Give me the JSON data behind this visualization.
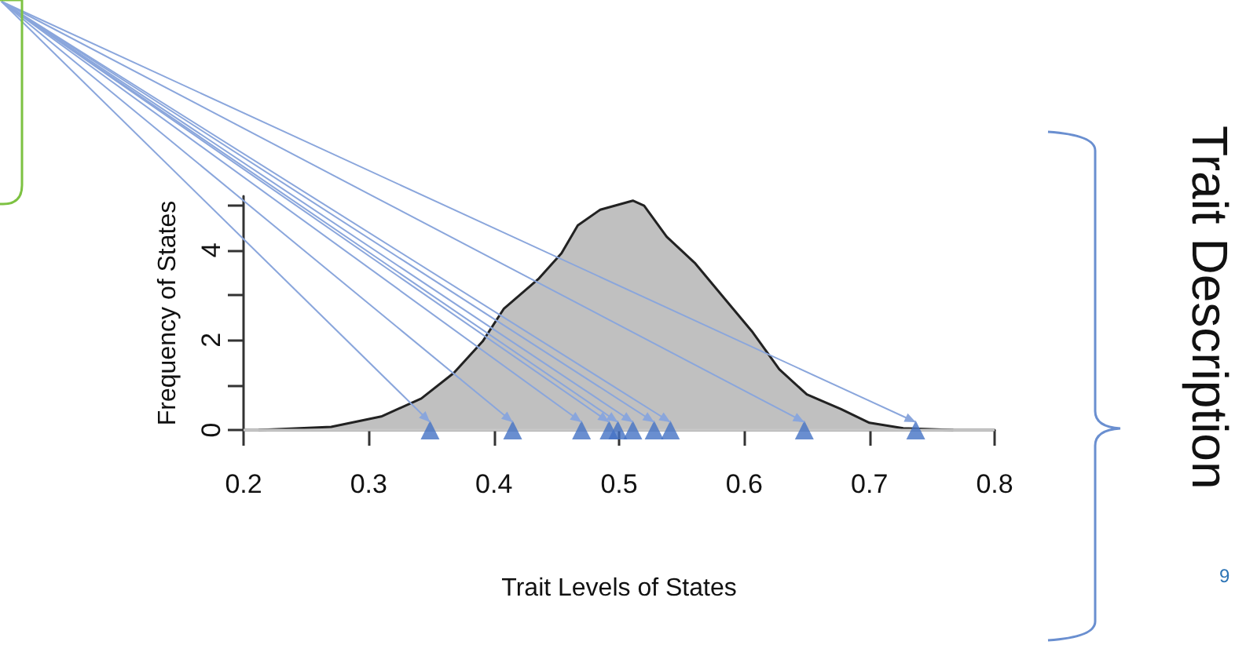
{
  "chart_data": {
    "type": "area",
    "xlabel": "Trait Levels of States",
    "ylabel": "Frequency of States",
    "xlim": [
      0.2,
      0.8
    ],
    "xticks": [
      0.2,
      0.3,
      0.4,
      0.5,
      0.6,
      0.7,
      0.8
    ],
    "ylim": [
      0,
      5.2
    ],
    "yticks": [
      0,
      {
        "value": 1,
        "label": null
      },
      2,
      {
        "value": 3,
        "label": null
      },
      4,
      {
        "value": 5,
        "label": null
      }
    ],
    "series": [
      {
        "color": "#c0c0c0",
        "marker": "none",
        "x": [
          0.212,
          0.27,
          0.31,
          0.342,
          0.368,
          0.391,
          0.408,
          0.436,
          0.454,
          0.467,
          0.485,
          0.511,
          0.52,
          0.538,
          0.561,
          0.587,
          0.606,
          0.628,
          0.65,
          0.677,
          0.7,
          0.727,
          0.767
        ],
        "values": [
          0,
          0.07,
          0.3,
          0.7,
          1.27,
          1.97,
          2.7,
          3.37,
          3.93,
          4.55,
          4.9,
          5.1,
          4.99,
          4.3,
          3.7,
          2.83,
          2.2,
          1.35,
          0.79,
          0.47,
          0.16,
          0.04,
          0
        ]
      },
      {
        "type": "scatter",
        "color": "#4472c4",
        "marker": "triangle",
        "x": [
          0.349,
          0.415,
          0.47,
          0.492,
          0.499,
          0.511,
          0.528,
          0.541,
          0.648,
          0.737
        ],
        "values": [
          0,
          0,
          0,
          0,
          0,
          0,
          0,
          0,
          0,
          0
        ]
      }
    ],
    "ref_lines": [
      {
        "axis": "y",
        "value": 0,
        "color": "#c8c8c8"
      }
    ],
    "annotations": [
      "Trait Description",
      "9"
    ]
  }
}
